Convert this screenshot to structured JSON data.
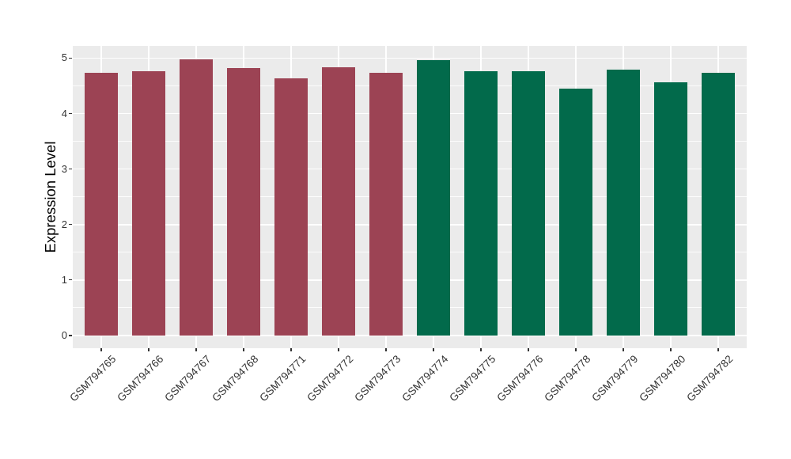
{
  "figure": {
    "background": "#FFFFFF",
    "panel_background": "#EBEBEB",
    "grid_color": "#FFFFFF",
    "axis_text_color": "#333333",
    "axis_title_color": "#000000"
  },
  "chart_data": {
    "type": "bar",
    "title": "",
    "xlabel": "",
    "ylabel": "Expression Level",
    "ylim": [
      -0.23,
      5.22
    ],
    "yticks": [
      0,
      1,
      2,
      3,
      4,
      5
    ],
    "yminor": [
      0.5,
      1.5,
      2.5,
      3.5,
      4.5
    ],
    "grid": "major-and-minor",
    "legend_position": "none",
    "x_label_rotation_deg": 45,
    "categories": [
      "GSM794765",
      "GSM794766",
      "GSM794767",
      "GSM794768",
      "GSM794771",
      "GSM794772",
      "GSM794773",
      "GSM794774",
      "GSM794775",
      "GSM794776",
      "GSM794778",
      "GSM794779",
      "GSM794780",
      "GSM794782"
    ],
    "values": [
      4.74,
      4.77,
      4.98,
      4.82,
      4.63,
      4.84,
      4.74,
      4.96,
      4.77,
      4.76,
      4.45,
      4.79,
      4.57,
      4.74
    ],
    "groups": [
      {
        "name": "group-1",
        "color": "#9C4354",
        "start": 0,
        "count": 7
      },
      {
        "name": "group-2",
        "color": "#026A4B",
        "start": 7,
        "count": 7
      }
    ]
  }
}
